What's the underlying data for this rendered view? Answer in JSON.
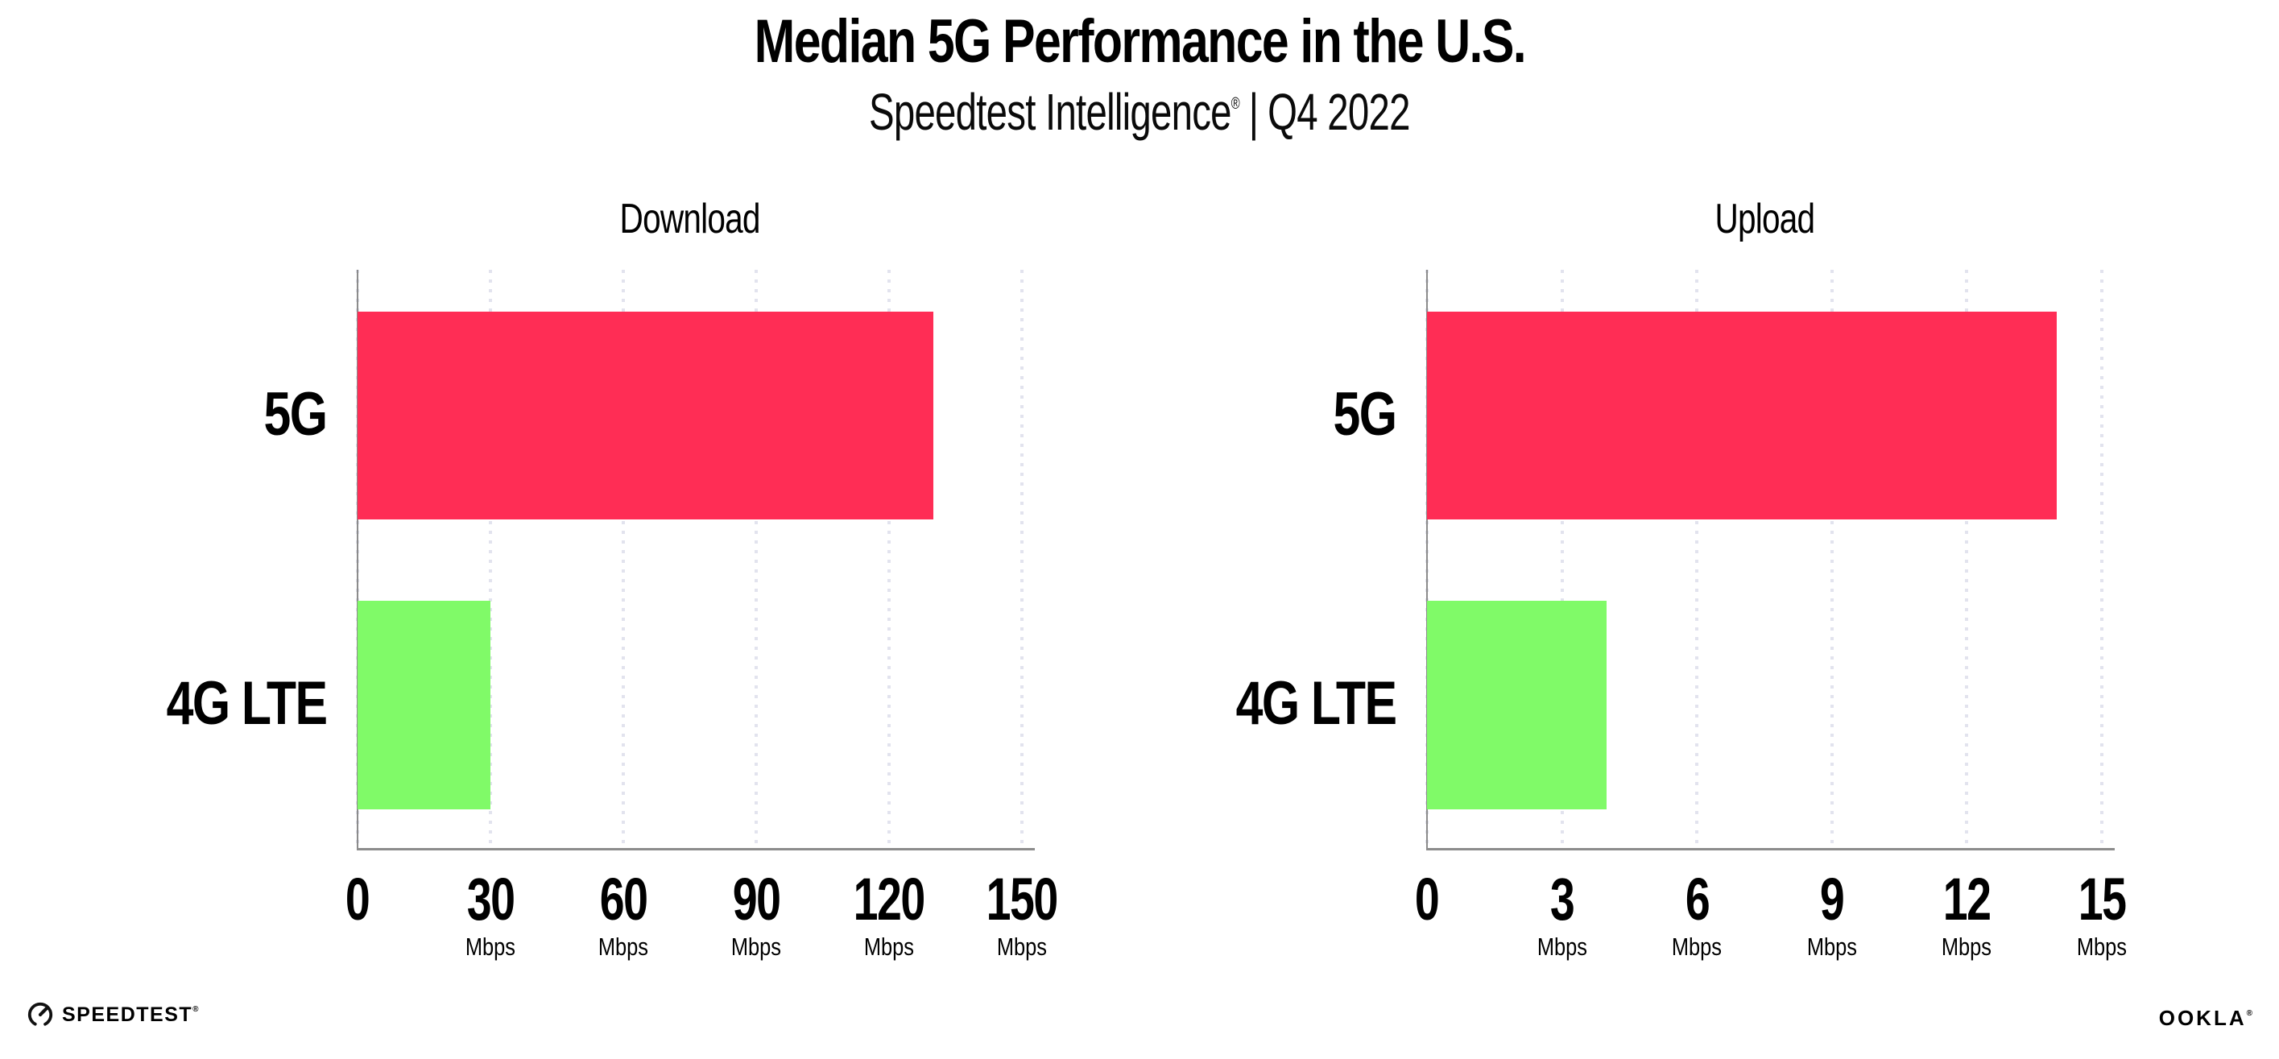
{
  "header": {
    "title": "Median 5G Performance in the U.S.",
    "subtitle_brand": "Speedtest Intelligence",
    "subtitle_reg": "®",
    "subtitle_sep": "|",
    "subtitle_period": "Q4 2022"
  },
  "footer": {
    "speedtest_wordmark": "SPEEDTEST",
    "speedtest_reg": "®",
    "ookla_wordmark": "OOKLA",
    "ookla_reg": "®"
  },
  "colors": {
    "bar_5g": "#FF2D55",
    "bar_4g_lte": "#80FA68",
    "axis_line": "#8C8C8C",
    "grid_dot": "#E2E3EE",
    "text": "#000000"
  },
  "chart_data": [
    {
      "type": "bar",
      "orientation": "horizontal",
      "title": "Download",
      "categories": [
        "5G",
        "4G LTE"
      ],
      "values": [
        130,
        30
      ],
      "unit": "Mbps",
      "xlim": [
        0,
        150
      ],
      "xticks": [
        0,
        30,
        60,
        90,
        120,
        150
      ],
      "tick_unit_label": "Mbps",
      "bar_colors": [
        "#FF2D55",
        "#80FA68"
      ],
      "grid": "dotted-vertical",
      "legend": "none"
    },
    {
      "type": "bar",
      "orientation": "horizontal",
      "title": "Upload",
      "categories": [
        "5G",
        "4G LTE"
      ],
      "values": [
        14,
        4
      ],
      "unit": "Mbps",
      "xlim": [
        0,
        15
      ],
      "xticks": [
        0,
        3,
        6,
        9,
        12,
        15
      ],
      "tick_unit_label": "Mbps",
      "bar_colors": [
        "#FF2D55",
        "#80FA68"
      ],
      "grid": "dotted-vertical",
      "legend": "none"
    }
  ]
}
